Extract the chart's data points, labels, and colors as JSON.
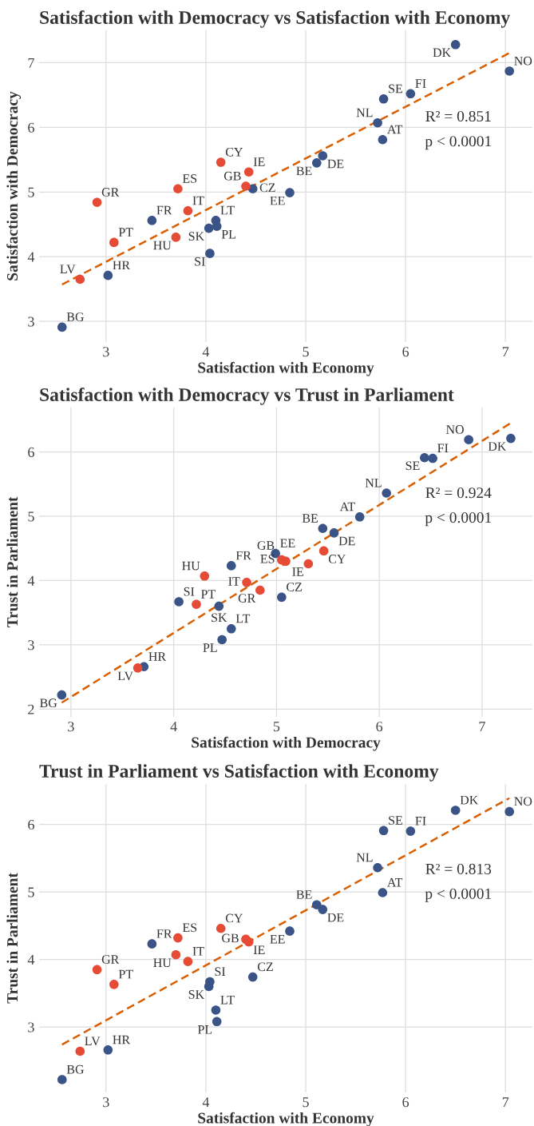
{
  "chart_data": [
    {
      "type": "scatter",
      "title": "Satisfaction with Democracy vs Satisfaction with Economy",
      "xlabel": "Satisfaction with Economy",
      "ylabel": "Satisfaction with Democracy",
      "xlim": [
        2.33,
        7.27
      ],
      "ylim": [
        2.68,
        7.5
      ],
      "xticks": [
        3,
        4,
        5,
        6,
        7
      ],
      "yticks": [
        3,
        4,
        5,
        6,
        7
      ],
      "grid": true,
      "marker": "circle",
      "series": [
        {
          "color": "#3b5488",
          "x": [
            6.5,
            7.04,
            5.78,
            6.05,
            5.72,
            5.77,
            5.17,
            5.11,
            4.84,
            4.47,
            4.1,
            4.11,
            4.03,
            4.04,
            3.46,
            3.02,
            2.56
          ],
          "values": [
            7.28,
            6.87,
            6.44,
            6.52,
            6.07,
            5.81,
            5.56,
            5.45,
            4.99,
            5.05,
            4.56,
            4.47,
            4.44,
            4.05,
            4.56,
            3.71,
            2.91
          ]
        },
        {
          "color": "#e64b35",
          "x": [
            4.43,
            4.4,
            4.15,
            3.72,
            3.82,
            3.7,
            2.91,
            3.08,
            2.74
          ],
          "values": [
            5.31,
            5.09,
            5.46,
            5.05,
            4.71,
            4.3,
            4.84,
            4.22,
            3.65
          ]
        },
        {
          "type": "line",
          "color": "#d95f02",
          "line_style": "dashed",
          "marker": "none",
          "x": [
            2.56,
            7.04
          ],
          "values": [
            3.57,
            7.15
          ]
        }
      ],
      "annotations": [
        "R² = 0.851",
        "p < 0.0001",
        {
          "text": "DK",
          "x": 6.5,
          "y": 7.28
        },
        {
          "text": "NO",
          "x": 7.04,
          "y": 6.87
        },
        {
          "text": "SE",
          "x": 5.78,
          "y": 6.44
        },
        {
          "text": "FI",
          "x": 6.05,
          "y": 6.52
        },
        {
          "text": "NL",
          "x": 5.72,
          "y": 6.07
        },
        {
          "text": "AT",
          "x": 5.77,
          "y": 5.81
        },
        {
          "text": "DE",
          "x": 5.17,
          "y": 5.56
        },
        {
          "text": "BE",
          "x": 5.11,
          "y": 5.45
        },
        {
          "text": "EE",
          "x": 4.84,
          "y": 4.99
        },
        {
          "text": "CZ",
          "x": 4.47,
          "y": 5.05
        },
        {
          "text": "LT",
          "x": 4.1,
          "y": 4.56
        },
        {
          "text": "PL",
          "x": 4.11,
          "y": 4.47
        },
        {
          "text": "SK",
          "x": 4.03,
          "y": 4.44
        },
        {
          "text": "SI",
          "x": 4.04,
          "y": 4.05
        },
        {
          "text": "FR",
          "x": 3.46,
          "y": 4.56
        },
        {
          "text": "HR",
          "x": 3.02,
          "y": 3.71
        },
        {
          "text": "BG",
          "x": 2.56,
          "y": 2.91
        },
        {
          "text": "IE",
          "x": 4.43,
          "y": 5.31
        },
        {
          "text": "GB",
          "x": 4.4,
          "y": 5.09
        },
        {
          "text": "CY",
          "x": 4.15,
          "y": 5.46
        },
        {
          "text": "ES",
          "x": 3.72,
          "y": 5.05
        },
        {
          "text": "IT",
          "x": 3.82,
          "y": 4.71
        },
        {
          "text": "HU",
          "x": 3.7,
          "y": 4.3
        },
        {
          "text": "GR",
          "x": 2.91,
          "y": 4.84
        },
        {
          "text": "PT",
          "x": 3.08,
          "y": 4.22
        },
        {
          "text": "LV",
          "x": 2.74,
          "y": 3.65
        }
      ]
    },
    {
      "type": "scatter",
      "title": "Satisfaction with Democracy vs Trust in Parliament",
      "xlabel": "Satisfaction with Democracy",
      "ylabel": "Trust in Parliament",
      "xlim": [
        2.69,
        7.49
      ],
      "ylim": [
        1.88,
        6.69
      ],
      "xticks": [
        3,
        4,
        5,
        6,
        7
      ],
      "yticks": [
        2,
        3,
        4,
        5,
        6
      ],
      "grid": true,
      "marker": "circle",
      "series": [
        {
          "color": "#3b5488",
          "x": [
            7.28,
            6.87,
            6.44,
            6.52,
            6.07,
            5.81,
            5.56,
            5.45,
            4.99,
            5.05,
            4.56,
            4.47,
            4.44,
            4.05,
            4.56,
            3.71,
            2.91
          ],
          "values": [
            6.21,
            6.19,
            5.91,
            5.9,
            5.36,
            4.99,
            4.74,
            4.81,
            4.42,
            3.74,
            3.25,
            3.08,
            3.6,
            3.67,
            4.23,
            2.66,
            2.22
          ]
        },
        {
          "color": "#e64b35",
          "x": [
            5.31,
            5.09,
            5.46,
            5.05,
            4.71,
            4.3,
            4.84,
            4.22,
            3.65
          ],
          "values": [
            4.26,
            4.3,
            4.46,
            4.32,
            3.97,
            4.07,
            3.85,
            3.63,
            2.64
          ]
        },
        {
          "type": "line",
          "color": "#d95f02",
          "line_style": "dashed",
          "marker": "none",
          "x": [
            2.91,
            7.28
          ],
          "values": [
            2.1,
            6.45
          ]
        }
      ],
      "annotations": [
        "R² = 0.924",
        "p < 0.0001",
        {
          "text": "DK",
          "x": 7.28,
          "y": 6.21
        },
        {
          "text": "NO",
          "x": 6.87,
          "y": 6.19
        },
        {
          "text": "SE",
          "x": 6.44,
          "y": 5.91
        },
        {
          "text": "FI",
          "x": 6.52,
          "y": 5.9
        },
        {
          "text": "NL",
          "x": 6.07,
          "y": 5.36
        },
        {
          "text": "AT",
          "x": 5.81,
          "y": 4.99
        },
        {
          "text": "DE",
          "x": 5.56,
          "y": 4.74
        },
        {
          "text": "BE",
          "x": 5.45,
          "y": 4.81
        },
        {
          "text": "EE",
          "x": 4.99,
          "y": 4.42
        },
        {
          "text": "CZ",
          "x": 5.05,
          "y": 3.74
        },
        {
          "text": "LT",
          "x": 4.56,
          "y": 3.25
        },
        {
          "text": "PL",
          "x": 4.47,
          "y": 3.08
        },
        {
          "text": "SK",
          "x": 4.44,
          "y": 3.6
        },
        {
          "text": "SI",
          "x": 4.05,
          "y": 3.67
        },
        {
          "text": "FR",
          "x": 4.56,
          "y": 4.23
        },
        {
          "text": "HR",
          "x": 3.71,
          "y": 2.66
        },
        {
          "text": "BG",
          "x": 2.91,
          "y": 2.22
        },
        {
          "text": "IE",
          "x": 5.31,
          "y": 4.26
        },
        {
          "text": "GB",
          "x": 5.09,
          "y": 4.3
        },
        {
          "text": "CY",
          "x": 5.46,
          "y": 4.46
        },
        {
          "text": "ES",
          "x": 5.05,
          "y": 4.32
        },
        {
          "text": "IT",
          "x": 4.71,
          "y": 3.97
        },
        {
          "text": "HU",
          "x": 4.3,
          "y": 4.07
        },
        {
          "text": "GR",
          "x": 4.84,
          "y": 3.85
        },
        {
          "text": "PT",
          "x": 4.22,
          "y": 3.63
        },
        {
          "text": "LV",
          "x": 3.65,
          "y": 2.64
        }
      ]
    },
    {
      "type": "scatter",
      "title": "Trust in Parliament vs Satisfaction with Economy",
      "xlabel": "Satisfaction with Economy",
      "ylabel": "Trust in Parliament",
      "xlim": [
        2.33,
        7.27
      ],
      "ylim": [
        2.03,
        6.6
      ],
      "xticks": [
        3,
        4,
        5,
        6,
        7
      ],
      "yticks": [
        3,
        4,
        5,
        6
      ],
      "grid": true,
      "marker": "circle",
      "series": [
        {
          "color": "#3b5488",
          "x": [
            6.5,
            7.04,
            5.78,
            6.05,
            5.72,
            5.77,
            5.17,
            5.11,
            4.84,
            4.47,
            4.1,
            4.11,
            4.03,
            4.04,
            3.46,
            3.02,
            2.56
          ],
          "values": [
            6.21,
            6.19,
            5.91,
            5.9,
            5.36,
            4.99,
            4.74,
            4.81,
            4.42,
            3.74,
            3.25,
            3.08,
            3.6,
            3.67,
            4.23,
            2.66,
            2.22
          ]
        },
        {
          "color": "#e64b35",
          "x": [
            4.43,
            4.4,
            4.15,
            3.72,
            3.82,
            3.7,
            2.91,
            3.08,
            2.74
          ],
          "values": [
            4.26,
            4.3,
            4.46,
            4.32,
            3.97,
            4.07,
            3.85,
            3.63,
            2.64
          ]
        },
        {
          "type": "line",
          "color": "#d95f02",
          "line_style": "dashed",
          "marker": "none",
          "x": [
            2.56,
            7.04
          ],
          "values": [
            2.74,
            6.39
          ]
        }
      ],
      "annotations": [
        "R² = 0.813",
        "p < 0.0001",
        {
          "text": "DK",
          "x": 6.5,
          "y": 6.21
        },
        {
          "text": "NO",
          "x": 7.04,
          "y": 6.19
        },
        {
          "text": "SE",
          "x": 5.78,
          "y": 5.91
        },
        {
          "text": "FI",
          "x": 6.05,
          "y": 5.9
        },
        {
          "text": "NL",
          "x": 5.72,
          "y": 5.36
        },
        {
          "text": "AT",
          "x": 5.77,
          "y": 4.99
        },
        {
          "text": "DE",
          "x": 5.17,
          "y": 4.74
        },
        {
          "text": "BE",
          "x": 5.11,
          "y": 4.81
        },
        {
          "text": "EE",
          "x": 4.84,
          "y": 4.42
        },
        {
          "text": "CZ",
          "x": 4.47,
          "y": 3.74
        },
        {
          "text": "LT",
          "x": 4.1,
          "y": 3.25
        },
        {
          "text": "PL",
          "x": 4.11,
          "y": 3.08
        },
        {
          "text": "SK",
          "x": 4.03,
          "y": 3.6
        },
        {
          "text": "SI",
          "x": 4.04,
          "y": 3.67
        },
        {
          "text": "FR",
          "x": 3.46,
          "y": 4.23
        },
        {
          "text": "HR",
          "x": 3.02,
          "y": 2.66
        },
        {
          "text": "BG",
          "x": 2.56,
          "y": 2.22
        },
        {
          "text": "IE",
          "x": 4.43,
          "y": 4.26
        },
        {
          "text": "GB",
          "x": 4.4,
          "y": 4.3
        },
        {
          "text": "CY",
          "x": 4.15,
          "y": 4.46
        },
        {
          "text": "ES",
          "x": 3.72,
          "y": 4.32
        },
        {
          "text": "IT",
          "x": 3.82,
          "y": 3.97
        },
        {
          "text": "HU",
          "x": 3.7,
          "y": 4.07
        },
        {
          "text": "GR",
          "x": 2.91,
          "y": 3.85
        },
        {
          "text": "PT",
          "x": 3.08,
          "y": 3.63
        },
        {
          "text": "LV",
          "x": 2.74,
          "y": 2.64
        }
      ]
    }
  ]
}
